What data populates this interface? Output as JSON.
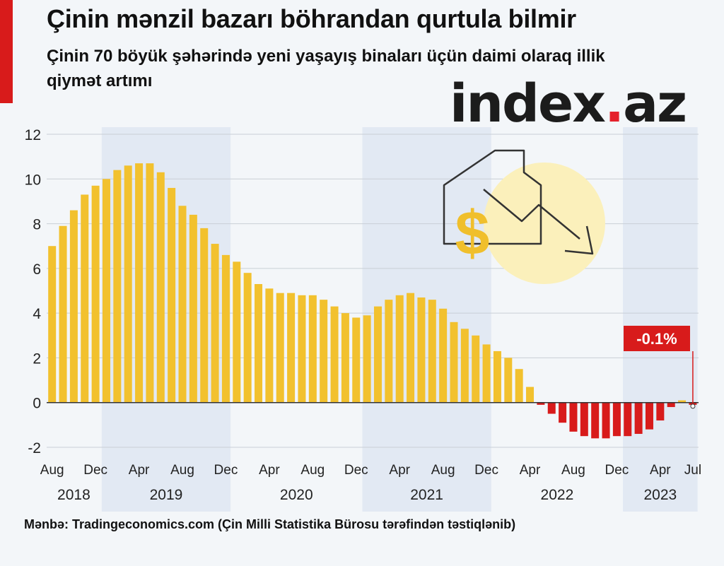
{
  "header": {
    "title": "Çinin mənzil bazarı böhrandan qurtula bilmir",
    "subtitle": "Çinin 70 böyük şəhərində yeni yaşayış binaları üçün daimi olaraq illik qiymət artımı"
  },
  "logo": {
    "part1": "index",
    "dot": ".",
    "part2": "az"
  },
  "source": "Mənbə: Tradingeconomics.com (Çin Milli Statistika Bürosu tərəfindən təstiqlənib)",
  "colors": {
    "accent": "#d81b1b",
    "positive_bar": "#f2c12e",
    "negative_bar": "#d81b1b",
    "year_band": "#e2e9f3",
    "background": "#f3f6f9"
  },
  "icons": [
    "house-price-drop-icon",
    "dollar-icon",
    "down-trend-arrow-icon"
  ],
  "chart_data": {
    "type": "bar",
    "title": "Çinin mənzil bazarı böhrandan qurtula bilmir",
    "ylabel": "",
    "xlabel": "",
    "ylim": [
      -2,
      12
    ],
    "yticks": [
      "-2",
      "0",
      "2",
      "4",
      "6",
      "8",
      "10",
      "12"
    ],
    "grid": true,
    "month_ticks": [
      {
        "label": "Aug",
        "index": 0
      },
      {
        "label": "Dec",
        "index": 4
      },
      {
        "label": "Apr",
        "index": 8
      },
      {
        "label": "Aug",
        "index": 12
      },
      {
        "label": "Dec",
        "index": 16
      },
      {
        "label": "Apr",
        "index": 20
      },
      {
        "label": "Aug",
        "index": 24
      },
      {
        "label": "Dec",
        "index": 28
      },
      {
        "label": "Apr",
        "index": 32
      },
      {
        "label": "Aug",
        "index": 36
      },
      {
        "label": "Dec",
        "index": 40
      },
      {
        "label": "Apr",
        "index": 44
      },
      {
        "label": "Aug",
        "index": 48
      },
      {
        "label": "Dec",
        "index": 52
      },
      {
        "label": "Apr",
        "index": 56
      },
      {
        "label": "Jul",
        "index": 59
      }
    ],
    "years": [
      {
        "label": "2018",
        "start": 0,
        "end": 4
      },
      {
        "label": "2019",
        "start": 5,
        "end": 16
      },
      {
        "label": "2020",
        "start": 17,
        "end": 28
      },
      {
        "label": "2021",
        "start": 29,
        "end": 40
      },
      {
        "label": "2022",
        "start": 41,
        "end": 52
      },
      {
        "label": "2023",
        "start": 53,
        "end": 59
      }
    ],
    "values": [
      7.0,
      7.9,
      8.6,
      9.3,
      9.7,
      10.0,
      10.4,
      10.6,
      10.7,
      10.7,
      10.3,
      9.6,
      8.8,
      8.4,
      7.8,
      7.1,
      6.6,
      6.3,
      5.8,
      5.3,
      5.1,
      4.9,
      4.9,
      4.8,
      4.8,
      4.6,
      4.3,
      4.0,
      3.8,
      3.9,
      4.3,
      4.6,
      4.8,
      4.9,
      4.7,
      4.6,
      4.2,
      3.6,
      3.3,
      3.0,
      2.6,
      2.3,
      2.0,
      1.5,
      0.7,
      -0.1,
      -0.5,
      -0.9,
      -1.3,
      -1.5,
      -1.6,
      -1.6,
      -1.5,
      -1.5,
      -1.4,
      -1.2,
      -0.8,
      -0.2,
      0.1,
      -0.1
    ],
    "highlight": {
      "index": 59,
      "label": "-0.1%",
      "value": -0.1
    }
  }
}
